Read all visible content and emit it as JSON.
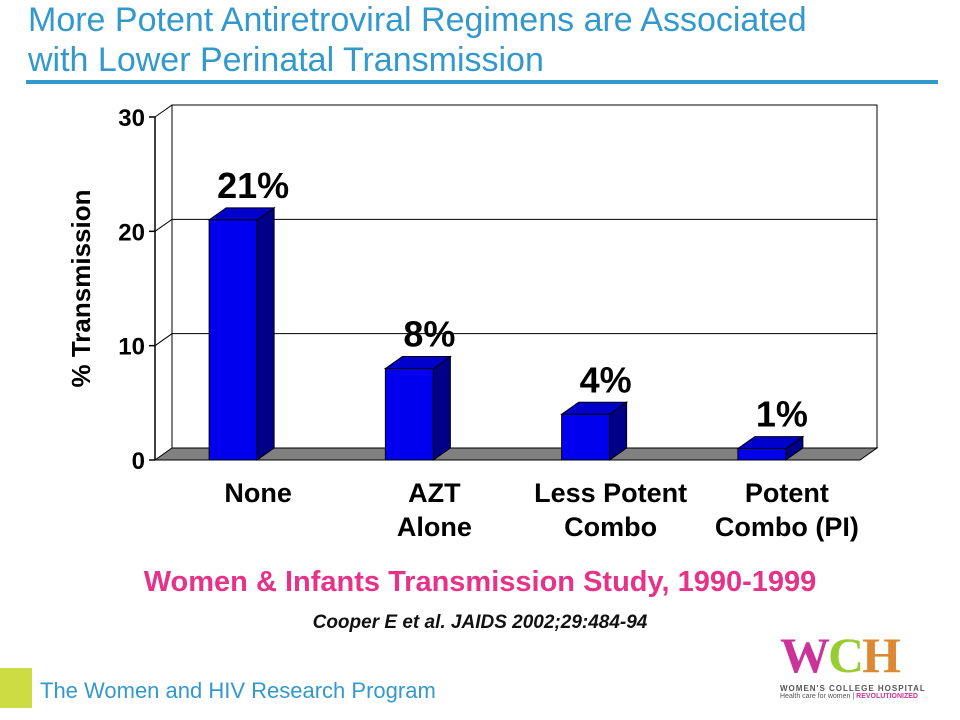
{
  "header": {
    "title_line1": "More Potent Antiretroviral Regimens are Associated",
    "title_line2": "with Lower Perinatal Transmission"
  },
  "chart_data": {
    "type": "bar",
    "categories": [
      [
        "None"
      ],
      [
        "AZT",
        "Alone"
      ],
      [
        "Less Potent",
        "Combo"
      ],
      [
        "Potent",
        "Combo (PI)"
      ]
    ],
    "values": [
      21,
      8,
      4,
      1
    ],
    "data_labels": [
      "21%",
      "8%",
      "4%",
      "1%"
    ],
    "ylabel": "% Transmission",
    "ylim": [
      0,
      30
    ],
    "yticks": [
      0,
      10,
      20,
      30
    ],
    "grid": true,
    "style": "3d",
    "colors": {
      "bar_front": "#0000ee",
      "bar_top": "#0000cc",
      "bar_side": "#000088",
      "floor": "#808080"
    }
  },
  "study": "Women & Infants Transmission Study, 1990-1999",
  "citation": "Cooper E et al.  JAIDS 2002;29:484-94",
  "footer": {
    "program": "The Women and HIV Research Program"
  },
  "logo": {
    "letters_w": "W",
    "letters_c": "C",
    "letters_h": "H",
    "name": "WOMEN'S COLLEGE HOSPITAL",
    "tagline_start": "Health care for women",
    "tagline_end": "REVOLUTIONIZED"
  },
  "colors": {
    "title": "#3399cc",
    "study": "#e6338a",
    "accent": "#ccdd44"
  }
}
